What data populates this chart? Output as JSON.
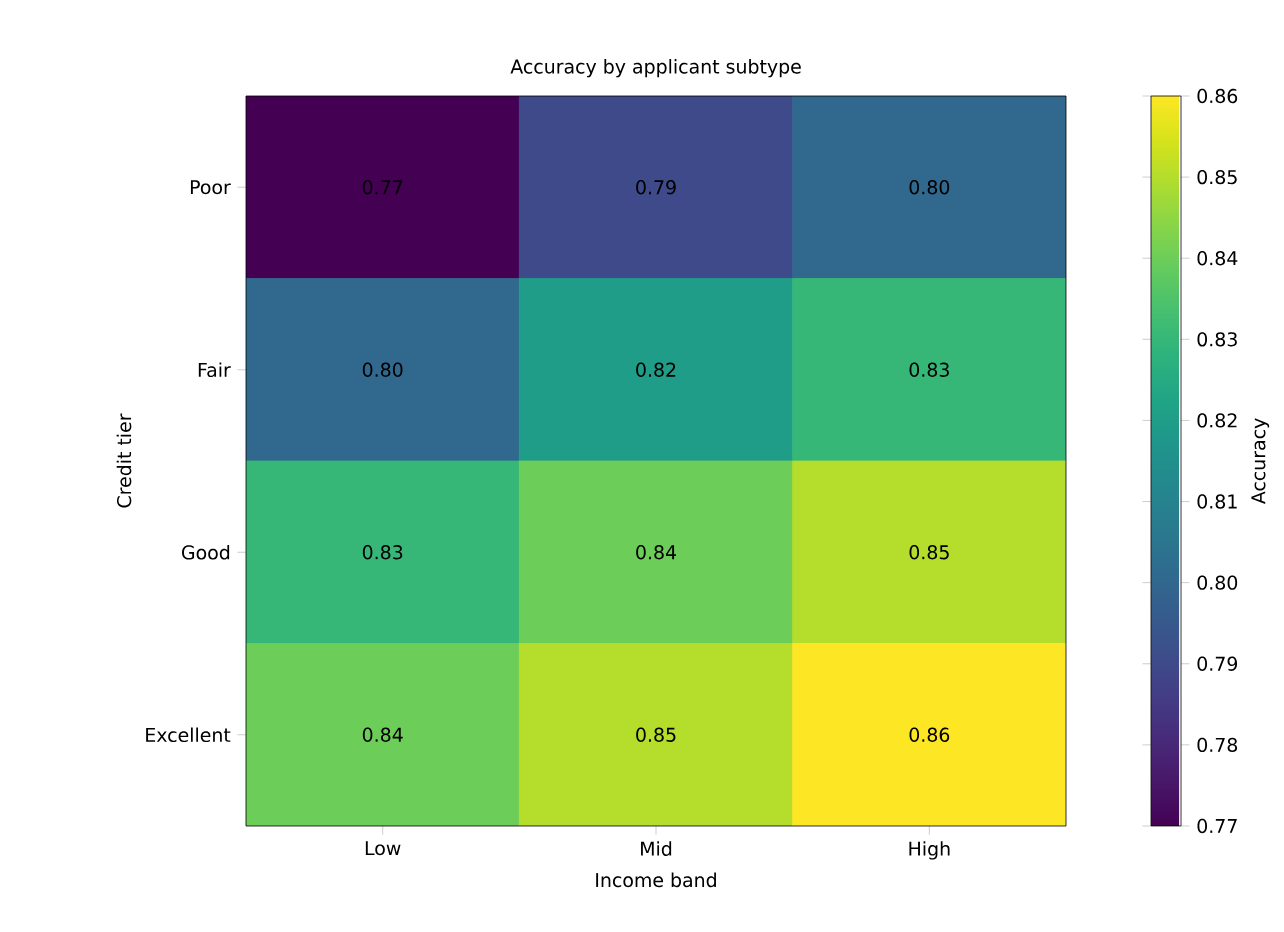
{
  "chart_data": {
    "type": "heatmap",
    "title": "Accuracy by applicant subtype",
    "xlabel": "Income band",
    "ylabel": "Credit tier",
    "clabel": "Accuracy",
    "categories": [
      "Low",
      "Mid",
      "High"
    ],
    "y_categories": [
      "Poor",
      "Fair",
      "Good",
      "Excellent"
    ],
    "cells": [
      [
        0.77,
        0.79,
        0.8
      ],
      [
        0.8,
        0.82,
        0.83
      ],
      [
        0.83,
        0.84,
        0.85
      ],
      [
        0.84,
        0.85,
        0.86
      ]
    ],
    "cell_labels": [
      [
        "0.77",
        "0.79",
        "0.80"
      ],
      [
        "0.80",
        "0.82",
        "0.83"
      ],
      [
        "0.83",
        "0.84",
        "0.85"
      ],
      [
        "0.84",
        "0.85",
        "0.86"
      ]
    ],
    "clim": [
      0.77,
      0.86
    ],
    "cticks": [
      0.77,
      0.78,
      0.79,
      {
        "value": 0.8,
        "label": "0.80"
      },
      0.81,
      0.82,
      0.83,
      0.84,
      0.85,
      0.86
    ]
  }
}
